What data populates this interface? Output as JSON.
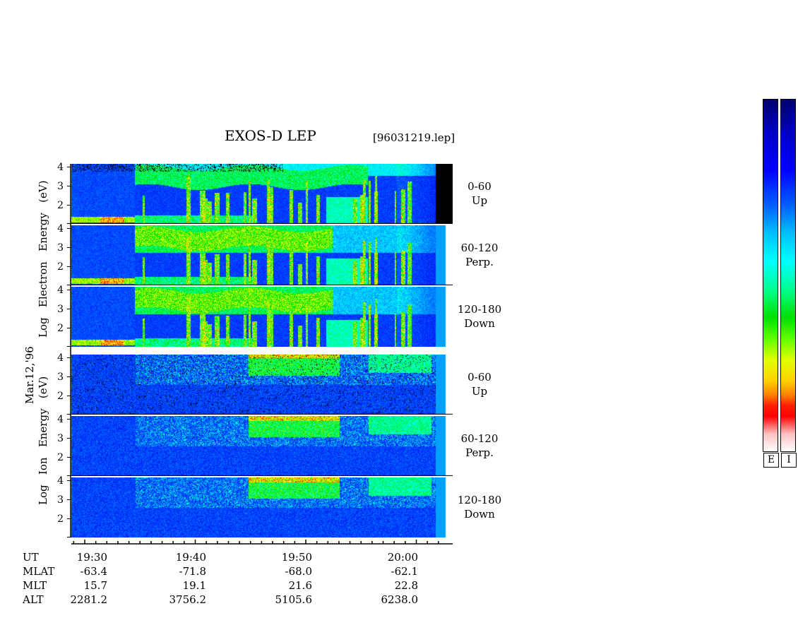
{
  "title": "EXOS-D LEP",
  "filename": "[96031219.lep]",
  "date_label": "Mar.12,'96",
  "electron_label": "Log   Electron   Energy   (eV)",
  "ion_label": "Log   Ion   Energy   (eV)",
  "colorbar": {
    "electron_label": "E",
    "ion_label": "I",
    "colors_top_to_bottom": [
      "#00008b",
      "#0000ff",
      "#00bfff",
      "#00ffff",
      "#00ff7f",
      "#00c800",
      "#7fff00",
      "#ffff00",
      "#ffa500",
      "#ff0000",
      "#ffc0cb",
      "#ffffff"
    ]
  },
  "chart_data": {
    "type": "heatmap",
    "title": "EXOS-D LEP",
    "ylim": [
      1,
      4
    ],
    "yticks": [
      "4",
      "3",
      "2"
    ],
    "x": [
      "19:30",
      "19:40",
      "19:50",
      "20:00"
    ],
    "panels": [
      {
        "species": "Electron",
        "pitch_angle": "0-60",
        "direction": "Up"
      },
      {
        "species": "Electron",
        "pitch_angle": "60-120",
        "direction": "Perp."
      },
      {
        "species": "Electron",
        "pitch_angle": "120-180",
        "direction": "Down"
      },
      {
        "species": "Ion",
        "pitch_angle": "0-60",
        "direction": "Up"
      },
      {
        "species": "Ion",
        "pitch_angle": "60-120",
        "direction": "Perp."
      },
      {
        "species": "Ion",
        "pitch_angle": "120-180",
        "direction": "Down"
      }
    ],
    "ephemeris": {
      "labels": [
        "UT",
        "MLAT",
        "MLT",
        "ALT"
      ],
      "columns": [
        {
          "UT": "19:30",
          "MLAT": "-63.4",
          "MLT": "15.7",
          "ALT": "2281.2"
        },
        {
          "UT": "19:40",
          "MLAT": "-71.8",
          "MLT": "19.1",
          "ALT": "3756.2"
        },
        {
          "UT": "19:50",
          "MLAT": "-68.0",
          "MLT": "21.6",
          "ALT": "5105.6"
        },
        {
          "UT": "20:00",
          "MLAT": "-62.1",
          "MLT": "22.8",
          "ALT": "6238.0"
        }
      ]
    }
  }
}
